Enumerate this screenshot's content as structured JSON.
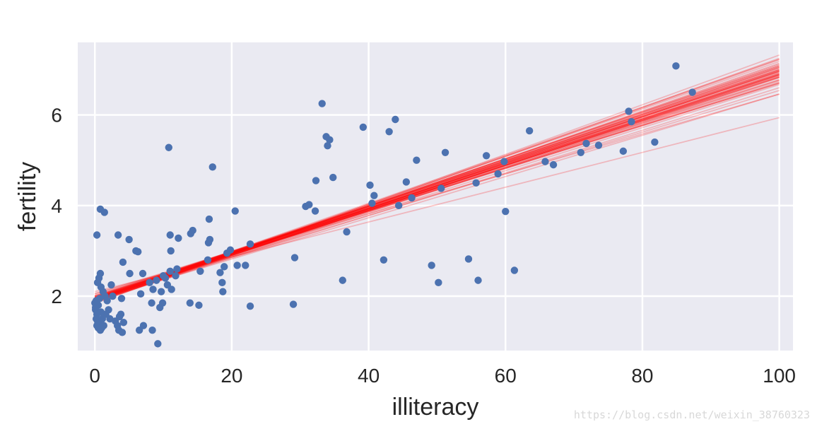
{
  "chart_data": {
    "type": "scatter",
    "title": "",
    "xlabel": "illiteracy",
    "ylabel": "fertility",
    "xlim": [
      -2.5,
      102
    ],
    "ylim": [
      0.8,
      7.6
    ],
    "xticks": [
      0,
      20,
      40,
      60,
      80,
      100
    ],
    "yticks": [
      2,
      4,
      6
    ],
    "grid": true,
    "background": "#eaeaf2",
    "point_color": "#4c72b0",
    "line_color": "#ff0000",
    "points": [
      [
        0.3,
        3.35
      ],
      [
        0.8,
        3.92
      ],
      [
        1.4,
        3.85
      ],
      [
        0.8,
        2.5
      ],
      [
        0.6,
        2.4
      ],
      [
        0.4,
        2.3
      ],
      [
        0.9,
        2.2
      ],
      [
        1.2,
        2.1
      ],
      [
        0.2,
        1.9
      ],
      [
        0.5,
        1.8
      ],
      [
        0.1,
        1.7
      ],
      [
        0.3,
        1.6
      ],
      [
        0.2,
        1.5
      ],
      [
        0.4,
        1.45
      ],
      [
        0.6,
        1.4
      ],
      [
        0.3,
        1.35
      ],
      [
        0.5,
        1.3
      ],
      [
        0.8,
        1.25
      ],
      [
        1.0,
        1.3
      ],
      [
        1.3,
        1.35
      ],
      [
        0.0,
        1.85
      ],
      [
        0.1,
        1.75
      ],
      [
        0.7,
        1.95
      ],
      [
        1.5,
        2.0
      ],
      [
        1.8,
        1.9
      ],
      [
        2.0,
        1.7
      ],
      [
        1.6,
        1.6
      ],
      [
        2.2,
        1.5
      ],
      [
        1.1,
        1.5
      ],
      [
        0.9,
        1.65
      ],
      [
        2.4,
        2.25
      ],
      [
        3.3,
        1.35
      ],
      [
        3.5,
        1.25
      ],
      [
        4.0,
        1.2
      ],
      [
        3.6,
        1.55
      ],
      [
        4.2,
        1.42
      ],
      [
        3.0,
        1.45
      ],
      [
        3.8,
        1.6
      ],
      [
        2.6,
        2.0
      ],
      [
        3.9,
        1.95
      ],
      [
        3.4,
        3.35
      ],
      [
        5.0,
        3.25
      ],
      [
        4.1,
        2.75
      ],
      [
        6.0,
        3.0
      ],
      [
        6.3,
        2.98
      ],
      [
        5.1,
        2.5
      ],
      [
        6.7,
        2.05
      ],
      [
        7.0,
        2.5
      ],
      [
        8.0,
        2.3
      ],
      [
        9.0,
        2.35
      ],
      [
        6.5,
        1.25
      ],
      [
        7.1,
        1.35
      ],
      [
        8.4,
        1.25
      ],
      [
        8.3,
        1.85
      ],
      [
        9.2,
        0.95
      ],
      [
        9.5,
        1.75
      ],
      [
        9.9,
        1.85
      ],
      [
        8.5,
        2.15
      ],
      [
        10.3,
        2.4
      ],
      [
        11.0,
        2.55
      ],
      [
        10.8,
        5.28
      ],
      [
        11.0,
        3.35
      ],
      [
        11.1,
        3.0
      ],
      [
        12.0,
        2.6
      ],
      [
        12.2,
        3.28
      ],
      [
        11.8,
        2.45
      ],
      [
        10.0,
        2.45
      ],
      [
        11.2,
        2.15
      ],
      [
        10.6,
        2.25
      ],
      [
        9.7,
        2.1
      ],
      [
        14.0,
        3.38
      ],
      [
        14.3,
        3.45
      ],
      [
        13.9,
        1.85
      ],
      [
        15.2,
        1.8
      ],
      [
        15.4,
        2.55
      ],
      [
        16.5,
        2.8
      ],
      [
        16.6,
        3.18
      ],
      [
        16.8,
        3.25
      ],
      [
        16.7,
        3.7
      ],
      [
        17.2,
        4.85
      ],
      [
        18.3,
        2.52
      ],
      [
        18.6,
        2.3
      ],
      [
        18.7,
        2.1
      ],
      [
        18.9,
        2.65
      ],
      [
        19.3,
        2.95
      ],
      [
        19.8,
        3.02
      ],
      [
        20.5,
        3.88
      ],
      [
        20.8,
        2.68
      ],
      [
        22.0,
        2.68
      ],
      [
        22.7,
        3.15
      ],
      [
        22.7,
        1.78
      ],
      [
        29.0,
        1.82
      ],
      [
        29.2,
        2.85
      ],
      [
        30.8,
        3.98
      ],
      [
        31.3,
        4.02
      ],
      [
        32.2,
        3.88
      ],
      [
        32.3,
        4.55
      ],
      [
        33.2,
        6.25
      ],
      [
        33.8,
        5.52
      ],
      [
        34.0,
        5.32
      ],
      [
        34.3,
        5.45
      ],
      [
        34.8,
        4.62
      ],
      [
        36.2,
        2.35
      ],
      [
        36.8,
        3.42
      ],
      [
        39.2,
        5.73
      ],
      [
        40.2,
        4.45
      ],
      [
        40.5,
        4.05
      ],
      [
        40.8,
        4.22
      ],
      [
        42.2,
        2.8
      ],
      [
        43.0,
        5.63
      ],
      [
        43.9,
        5.9
      ],
      [
        44.4,
        4.0
      ],
      [
        45.5,
        4.52
      ],
      [
        46.3,
        4.17
      ],
      [
        47.0,
        5.0
      ],
      [
        49.2,
        2.68
      ],
      [
        50.2,
        2.3
      ],
      [
        50.6,
        4.38
      ],
      [
        51.2,
        5.17
      ],
      [
        54.6,
        2.82
      ],
      [
        55.7,
        4.5
      ],
      [
        56.0,
        2.35
      ],
      [
        57.2,
        5.1
      ],
      [
        58.9,
        4.7
      ],
      [
        59.8,
        4.97
      ],
      [
        60.0,
        3.87
      ],
      [
        61.3,
        2.57
      ],
      [
        63.5,
        5.65
      ],
      [
        65.8,
        4.97
      ],
      [
        67.0,
        4.9
      ],
      [
        71.0,
        5.17
      ],
      [
        71.8,
        5.37
      ],
      [
        73.6,
        5.33
      ],
      [
        77.2,
        5.2
      ],
      [
        78.0,
        6.08
      ],
      [
        78.4,
        5.85
      ],
      [
        81.8,
        5.4
      ],
      [
        84.9,
        7.08
      ],
      [
        87.3,
        6.5
      ]
    ],
    "regression_lines": [
      [
        1.92,
        0.05
      ],
      [
        1.93,
        0.0502
      ],
      [
        1.94,
        0.0504
      ],
      [
        1.9,
        0.0498
      ],
      [
        1.95,
        0.0496
      ],
      [
        1.91,
        0.0506
      ],
      [
        1.96,
        0.05
      ],
      [
        1.89,
        0.0508
      ],
      [
        1.97,
        0.0492
      ],
      [
        1.93,
        0.051
      ],
      [
        1.88,
        0.0512
      ],
      [
        1.99,
        0.049
      ],
      [
        1.92,
        0.0494
      ],
      [
        1.94,
        0.0514
      ],
      [
        1.87,
        0.0505
      ],
      [
        2.0,
        0.0495
      ],
      [
        1.9,
        0.0516
      ],
      [
        1.96,
        0.0488
      ],
      [
        1.93,
        0.049
      ],
      [
        1.91,
        0.0497
      ],
      [
        1.95,
        0.0509
      ],
      [
        1.89,
        0.05
      ],
      [
        1.97,
        0.0503
      ],
      [
        1.92,
        0.0518
      ],
      [
        1.98,
        0.0485
      ],
      [
        1.86,
        0.0519
      ],
      [
        2.01,
        0.0484
      ],
      [
        1.94,
        0.0482
      ],
      [
        1.9,
        0.0522
      ],
      [
        1.96,
        0.0512
      ],
      [
        1.92,
        0.0475
      ],
      [
        1.97,
        0.048
      ],
      [
        1.88,
        0.0526
      ],
      [
        2.02,
        0.0476
      ],
      [
        1.93,
        0.053
      ],
      [
        1.99,
        0.0472
      ],
      [
        1.85,
        0.054
      ],
      [
        2.05,
        0.0465
      ],
      [
        1.91,
        0.0455
      ],
      [
        1.89,
        0.0533
      ],
      [
        2.0,
        0.047
      ],
      [
        1.93,
        0.0525
      ],
      [
        1.95,
        0.0478
      ],
      [
        1.9,
        0.047
      ],
      [
        1.98,
        0.0502
      ],
      [
        1.87,
        0.0495
      ],
      [
        1.94,
        0.046
      ],
      [
        2.06,
        0.044
      ],
      [
        1.84,
        0.0548
      ],
      [
        2.1,
        0.0384
      ]
    ]
  }
}
